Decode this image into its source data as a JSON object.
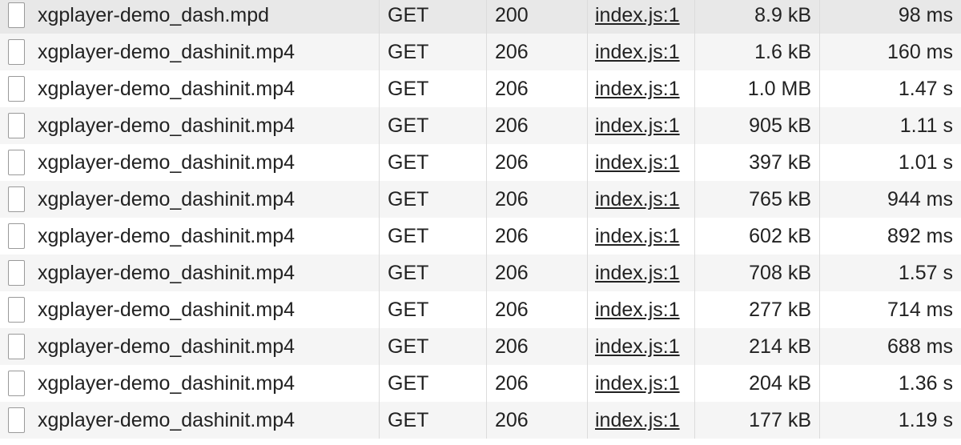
{
  "requests": [
    {
      "name": "xgplayer-demo_dash.mpd",
      "method": "GET",
      "status": "200",
      "initiator": "index.js:1",
      "size": "8.9 kB",
      "time": "98 ms",
      "icon": "document-icon"
    },
    {
      "name": "xgplayer-demo_dashinit.mp4",
      "method": "GET",
      "status": "206",
      "initiator": "index.js:1",
      "size": "1.6 kB",
      "time": "160 ms",
      "icon": "document-icon"
    },
    {
      "name": "xgplayer-demo_dashinit.mp4",
      "method": "GET",
      "status": "206",
      "initiator": "index.js:1",
      "size": "1.0 MB",
      "time": "1.47 s",
      "icon": "document-icon"
    },
    {
      "name": "xgplayer-demo_dashinit.mp4",
      "method": "GET",
      "status": "206",
      "initiator": "index.js:1",
      "size": "905 kB",
      "time": "1.11 s",
      "icon": "document-icon"
    },
    {
      "name": "xgplayer-demo_dashinit.mp4",
      "method": "GET",
      "status": "206",
      "initiator": "index.js:1",
      "size": "397 kB",
      "time": "1.01 s",
      "icon": "document-icon"
    },
    {
      "name": "xgplayer-demo_dashinit.mp4",
      "method": "GET",
      "status": "206",
      "initiator": "index.js:1",
      "size": "765 kB",
      "time": "944 ms",
      "icon": "document-icon"
    },
    {
      "name": "xgplayer-demo_dashinit.mp4",
      "method": "GET",
      "status": "206",
      "initiator": "index.js:1",
      "size": "602 kB",
      "time": "892 ms",
      "icon": "document-icon"
    },
    {
      "name": "xgplayer-demo_dashinit.mp4",
      "method": "GET",
      "status": "206",
      "initiator": "index.js:1",
      "size": "708 kB",
      "time": "1.57 s",
      "icon": "document-icon"
    },
    {
      "name": "xgplayer-demo_dashinit.mp4",
      "method": "GET",
      "status": "206",
      "initiator": "index.js:1",
      "size": "277 kB",
      "time": "714 ms",
      "icon": "document-icon"
    },
    {
      "name": "xgplayer-demo_dashinit.mp4",
      "method": "GET",
      "status": "206",
      "initiator": "index.js:1",
      "size": "214 kB",
      "time": "688 ms",
      "icon": "document-icon"
    },
    {
      "name": "xgplayer-demo_dashinit.mp4",
      "method": "GET",
      "status": "206",
      "initiator": "index.js:1",
      "size": "204 kB",
      "time": "1.36 s",
      "icon": "document-icon"
    },
    {
      "name": "xgplayer-demo_dashinit.mp4",
      "method": "GET",
      "status": "206",
      "initiator": "index.js:1",
      "size": "177 kB",
      "time": "1.19 s",
      "icon": "document-icon"
    }
  ],
  "colors": {
    "row_even": "#ffffff",
    "row_odd": "#f5f5f5",
    "row_selected": "#e8e8e8",
    "grid_line": "#dcdcdc",
    "text": "#222222"
  }
}
